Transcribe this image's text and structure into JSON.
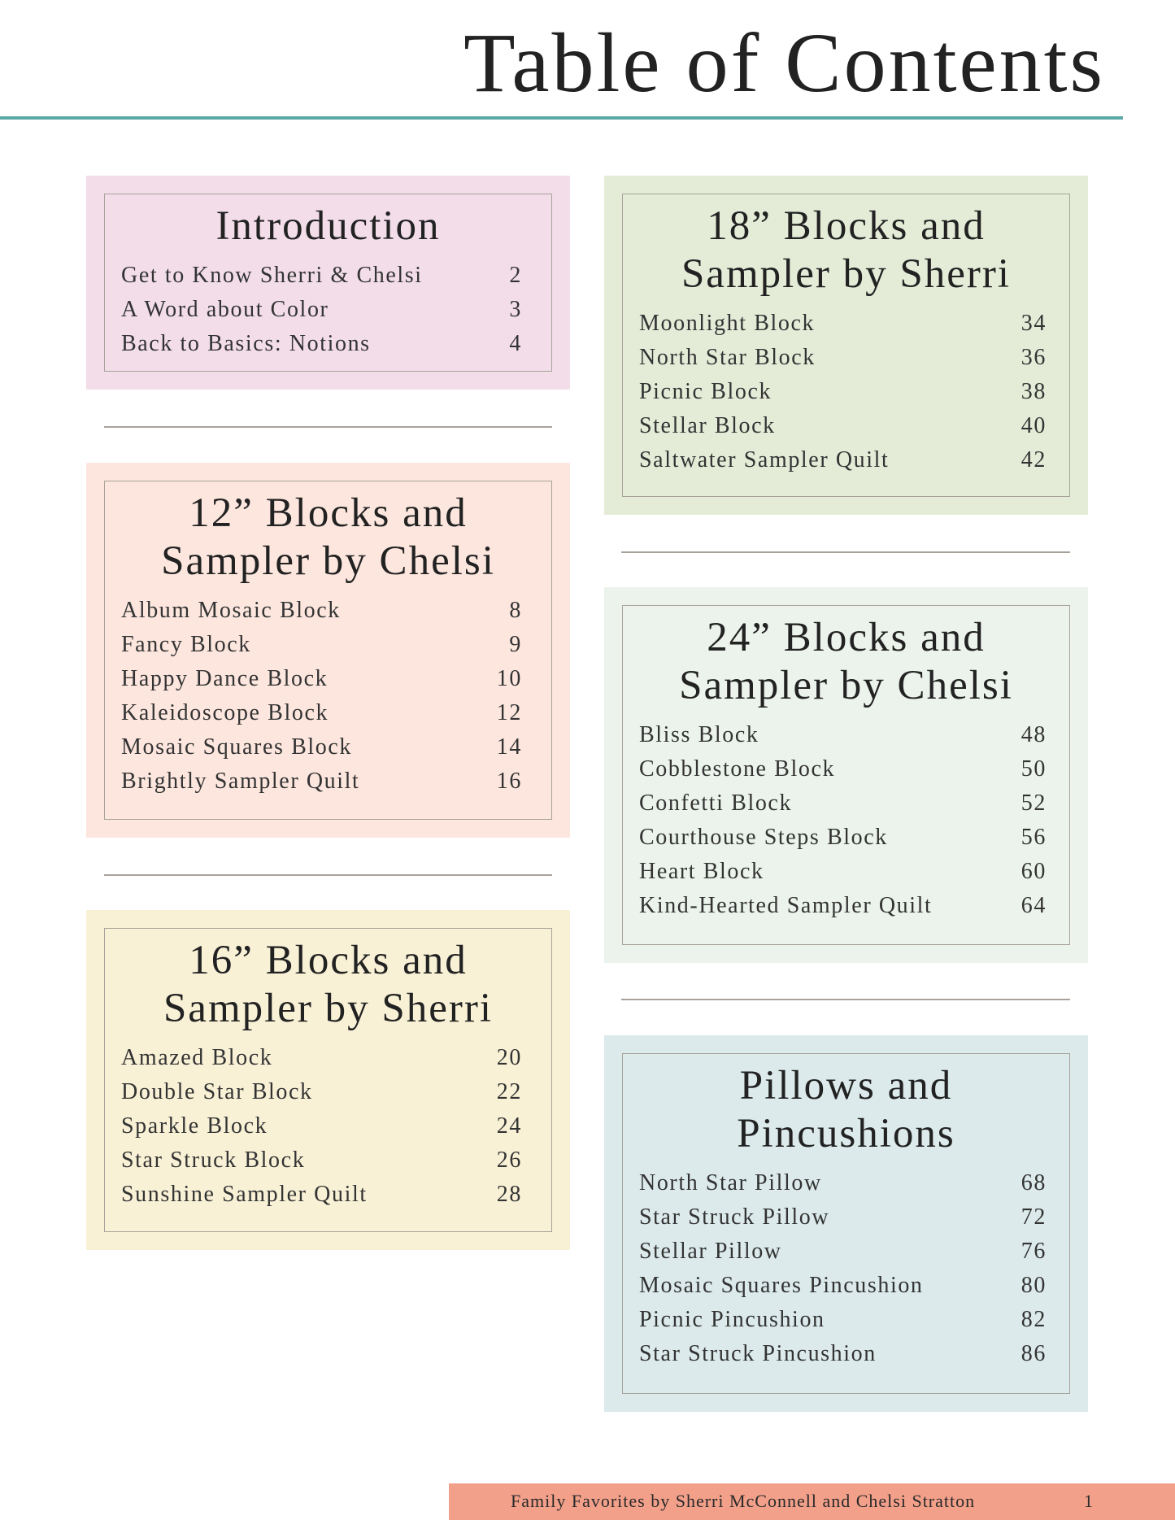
{
  "page_title": "Table of Contents",
  "colors": {
    "rule": "#5aa9a6",
    "footer": "#f3a08a",
    "border": "#a8a29a"
  },
  "sections": [
    {
      "id": "introduction",
      "title": "Introduction",
      "color": "#f2dde9",
      "items": [
        {
          "label": "Get to Know Sherri & Chelsi",
          "page": "2"
        },
        {
          "label": "A Word about Color",
          "page": "3"
        },
        {
          "label": "Back to Basics: Notions",
          "page": "4"
        }
      ]
    },
    {
      "id": "12-blocks",
      "title": "12” Blocks and Sampler by Chelsi",
      "color": "#fce6de",
      "items": [
        {
          "label": "Album Mosaic Block",
          "page": "8"
        },
        {
          "label": "Fancy Block",
          "page": "9"
        },
        {
          "label": "Happy Dance Block",
          "page": "10"
        },
        {
          "label": "Kaleidoscope Block",
          "page": "12"
        },
        {
          "label": "Mosaic Squares Block",
          "page": "14"
        },
        {
          "label": "Brightly Sampler Quilt",
          "page": "16"
        }
      ]
    },
    {
      "id": "16-blocks",
      "title": "16” Blocks and Sampler by Sherri",
      "color": "#f8f1d6",
      "items": [
        {
          "label": "Amazed Block",
          "page": "20"
        },
        {
          "label": "Double Star Block",
          "page": "22"
        },
        {
          "label": "Sparkle Block",
          "page": "24"
        },
        {
          "label": "Star Struck Block",
          "page": "26"
        },
        {
          "label": "Sunshine Sampler Quilt",
          "page": "28"
        }
      ]
    },
    {
      "id": "18-blocks",
      "title": "18” Blocks and Sampler by Sherri",
      "color": "#e4ecd8",
      "items": [
        {
          "label": "Moonlight Block",
          "page": "34"
        },
        {
          "label": "North Star Block",
          "page": "36"
        },
        {
          "label": "Picnic Block",
          "page": "38"
        },
        {
          "label": "Stellar Block",
          "page": "40"
        },
        {
          "label": "Saltwater Sampler Quilt",
          "page": "42"
        }
      ]
    },
    {
      "id": "24-blocks",
      "title": "24” Blocks and Sampler by Chelsi",
      "color": "#ebf3ec",
      "items": [
        {
          "label": "Bliss Block",
          "page": "48"
        },
        {
          "label": "Cobblestone Block",
          "page": "50"
        },
        {
          "label": "Confetti Block",
          "page": "52"
        },
        {
          "label": "Courthouse Steps Block",
          "page": "56"
        },
        {
          "label": "Heart Block",
          "page": "60"
        },
        {
          "label": "Kind-Hearted Sampler Quilt",
          "page": "64"
        }
      ]
    },
    {
      "id": "pillows",
      "title": "Pillows and Pincushions",
      "color": "#dceaeb",
      "items": [
        {
          "label": "North Star Pillow",
          "page": "68"
        },
        {
          "label": "Star Struck Pillow",
          "page": "72"
        },
        {
          "label": "Stellar Pillow",
          "page": "76"
        },
        {
          "label": "Mosaic Squares Pincushion",
          "page": "80"
        },
        {
          "label": "Picnic Pincushion",
          "page": "82"
        },
        {
          "label": "Star Struck Pincushion",
          "page": "86"
        }
      ]
    }
  ],
  "footer": {
    "text": "Family Favorites by Sherri McConnell and Chelsi Stratton",
    "page_number": "1"
  }
}
